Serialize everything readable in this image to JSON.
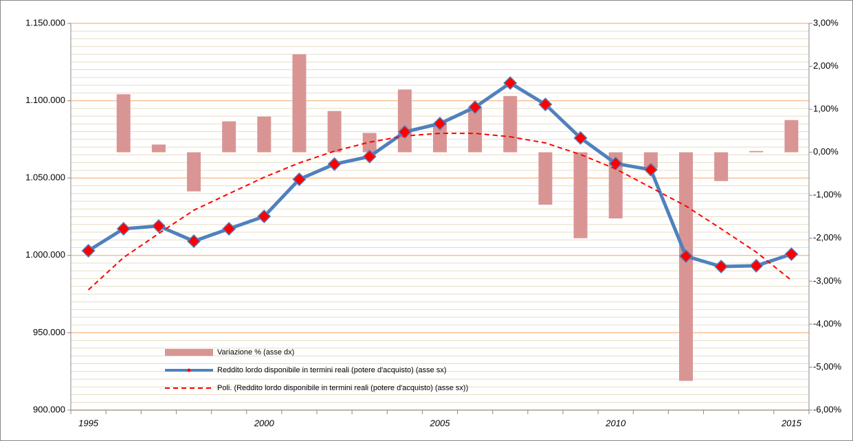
{
  "chart_data": {
    "type": "line",
    "categories": [
      1995,
      null,
      null,
      null,
      null,
      2000,
      null,
      null,
      null,
      null,
      2005,
      null,
      null,
      null,
      null,
      2010,
      null,
      null,
      null,
      null,
      2015
    ],
    "series": [
      {
        "name": "Variazione % (asse dx)",
        "type": "bar",
        "axis": "y2",
        "color": "#d99594",
        "values": [
          null,
          1.35,
          0.18,
          -0.91,
          0.72,
          0.83,
          2.28,
          0.96,
          0.45,
          1.46,
          0.68,
          1.05,
          1.31,
          -1.22,
          -2.0,
          -1.54,
          -0.37,
          -5.32,
          -0.67,
          0.03,
          0.75
        ]
      },
      {
        "name": "Reddito lordo disponibile in termini reali (potere d'acquisto) (asse sx)",
        "type": "line",
        "color": "#4f81bd",
        "marker_color": "#ff0000",
        "values": [
          1003000,
          1017200,
          1019000,
          1009200,
          1017200,
          1025200,
          1049200,
          1059000,
          1063900,
          1079800,
          1085200,
          1095800,
          1111400,
          1097600,
          1075900,
          1059400,
          1055400,
          999500,
          992800,
          993300,
          1000800
        ]
      },
      {
        "name": "Poli. (Reddito lordo disponibile in termini reali (potere d'acquisto) (asse sx))",
        "type": "trend",
        "color": "#ff0000",
        "values": [
          977700,
          998600,
          1014100,
          1029200,
          1039900,
          1050500,
          1059800,
          1067400,
          1073200,
          1077200,
          1078900,
          1078900,
          1076700,
          1072700,
          1065200,
          1055900,
          1043900,
          1031900,
          1017200,
          1002100,
          983900
        ]
      }
    ],
    "ylim": [
      900000,
      1150000
    ],
    "yticks": [
      {
        "value": 900000,
        "label": "900.000"
      },
      {
        "value": 950000,
        "label": "950.000"
      },
      {
        "value": 1000000,
        "label": "1.000.000"
      },
      {
        "value": 1050000,
        "label": "1.050.000"
      },
      {
        "value": 1100000,
        "label": "1.100.000"
      },
      {
        "value": 1150000,
        "label": "1.150.000"
      }
    ],
    "y2lim": [
      -6,
      3
    ],
    "y2ticks": [
      {
        "value": -6,
        "label": "-6,00%"
      },
      {
        "value": -5,
        "label": "-5,00%"
      },
      {
        "value": -4,
        "label": "-4,00%"
      },
      {
        "value": -3,
        "label": "-3,00%"
      },
      {
        "value": -2,
        "label": "-2,00%"
      },
      {
        "value": -1,
        "label": "-1,00%"
      },
      {
        "value": 0,
        "label": "0,00%"
      },
      {
        "value": 1,
        "label": "1,00%"
      },
      {
        "value": 2,
        "label": "2,00%"
      },
      {
        "value": 3,
        "label": "3,00%"
      }
    ],
    "grid": true,
    "legend_position": "lower left"
  }
}
